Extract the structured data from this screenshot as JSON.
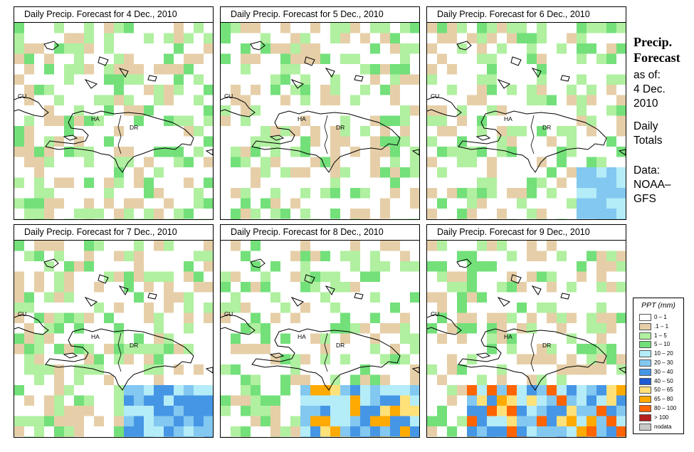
{
  "panels": [
    {
      "title": "Daily Precip. Forecast for  4 Dec., 2010",
      "seed": 11,
      "rain": 0
    },
    {
      "title": "Daily Precip. Forecast for  5 Dec., 2010",
      "seed": 23,
      "rain": 0
    },
    {
      "title": "Daily Precip. Forecast for  6 Dec., 2010",
      "seed": 37,
      "rain": 1
    },
    {
      "title": "Daily Precip. Forecast for  7 Dec., 2010",
      "seed": 41,
      "rain": 2
    },
    {
      "title": "Daily Precip. Forecast for  8 Dec., 2010",
      "seed": 53,
      "rain": 3
    },
    {
      "title": "Daily Precip. Forecast for  9 Dec., 2010",
      "seed": 67,
      "rain": 4
    }
  ],
  "map_labels": {
    "cuba": "CU",
    "haiti": "HA",
    "dominican_republic": "DR"
  },
  "sidebar": {
    "title_line1": "Precip.",
    "title_line2": "Forecast",
    "asof_line1": "as of:",
    "asof_line2": "4 Dec.",
    "asof_line3": "2010",
    "daily_line1": "Daily",
    "daily_line2": "Totals",
    "data_line1": "Data:",
    "data_line2": "NOAA–",
    "data_line3": "GFS"
  },
  "legend": {
    "title": "PPT (mm)",
    "items": [
      {
        "label": "0 – 1",
        "color": "#ffffff"
      },
      {
        "label": ".1 – 1",
        "color": "#e6cfa8"
      },
      {
        "label": "1 – 5",
        "color": "#b0f0a0"
      },
      {
        "label": "5 – 10",
        "color": "#73e07a"
      },
      {
        "label": "10 – 20",
        "color": "#b4ecf8"
      },
      {
        "label": "20 – 30",
        "color": "#82c8f0"
      },
      {
        "label": "30 – 40",
        "color": "#4696e6"
      },
      {
        "label": "40 – 50",
        "color": "#1e5ad2"
      },
      {
        "label": "50 – 65",
        "color": "#ffe17a"
      },
      {
        "label": "65 – 80",
        "color": "#ffaa00"
      },
      {
        "label": "80 – 100",
        "color": "#ff6400"
      },
      {
        "label": "> 100",
        "color": "#b41e1e"
      },
      {
        "label": "nodata",
        "color": "#c8c8c8"
      }
    ]
  }
}
